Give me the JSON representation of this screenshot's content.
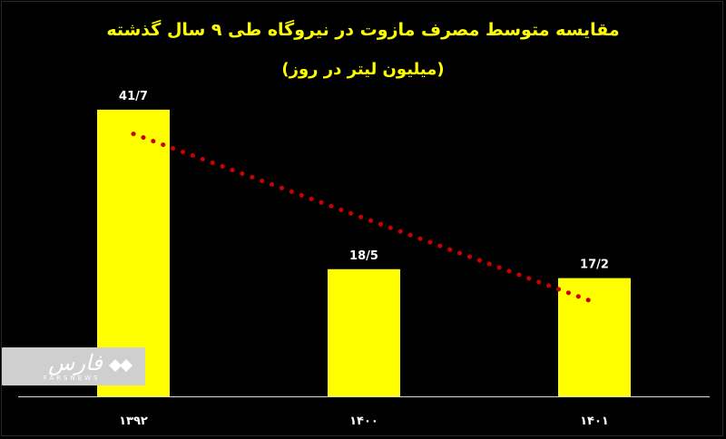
{
  "chart_data": {
    "type": "bar",
    "title": "مقایسه متوسط مصرف مازوت در نیروگاه طی ۹ سال گذشته",
    "subtitle": "(میلیون لیتر در روز)",
    "xlabel": "",
    "ylabel": "",
    "categories": [
      "۱۳۹۲",
      "۱۴۰۰",
      "۱۴۰۱"
    ],
    "values": [
      41.7,
      18.5,
      17.2
    ],
    "data_labels": [
      "41/7",
      "18/5",
      "17/2"
    ],
    "ylim": [
      0,
      50
    ],
    "grid": false,
    "legend": "none",
    "trendline": {
      "style": "dotted",
      "color": "#cc0000"
    },
    "colors": {
      "bar": "#ffff00",
      "text": "#ffffff",
      "title": "#ffff00",
      "background": "#000000"
    }
  },
  "watermark": {
    "logo_text": "فارس",
    "logo_sub": "FARSNEWS"
  }
}
